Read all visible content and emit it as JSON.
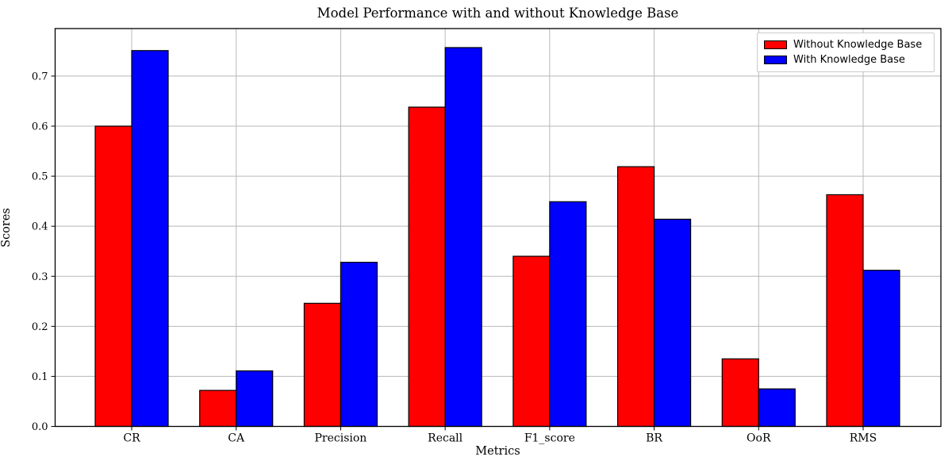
{
  "chart_data": {
    "type": "bar",
    "title": "Model Performance with and without Knowledge Base",
    "xlabel": "Metrics",
    "ylabel": "Scores",
    "categories": [
      "CR",
      "CA",
      "Precision",
      "Recall",
      "F1_score",
      "BR",
      "OoR",
      "RMS"
    ],
    "series": [
      {
        "name": "Without Knowledge Base",
        "color": "#ff0000",
        "values": [
          0.6,
          0.072,
          0.246,
          0.638,
          0.34,
          0.519,
          0.135,
          0.463
        ]
      },
      {
        "name": "With Knowledge Base",
        "color": "#0000ff",
        "values": [
          0.751,
          0.111,
          0.328,
          0.757,
          0.449,
          0.414,
          0.075,
          0.312
        ]
      }
    ],
    "ylim": [
      0,
      0.795
    ],
    "yticks": [
      "0.0",
      "0.1",
      "0.2",
      "0.3",
      "0.4",
      "0.5",
      "0.6",
      "0.7"
    ],
    "grid": true,
    "grid_color": "#b8b8b8",
    "bar_edge_color": "#000000",
    "axis_color": "#000000",
    "legend_position": "upper right",
    "legend_border_color": "#cccccc"
  }
}
